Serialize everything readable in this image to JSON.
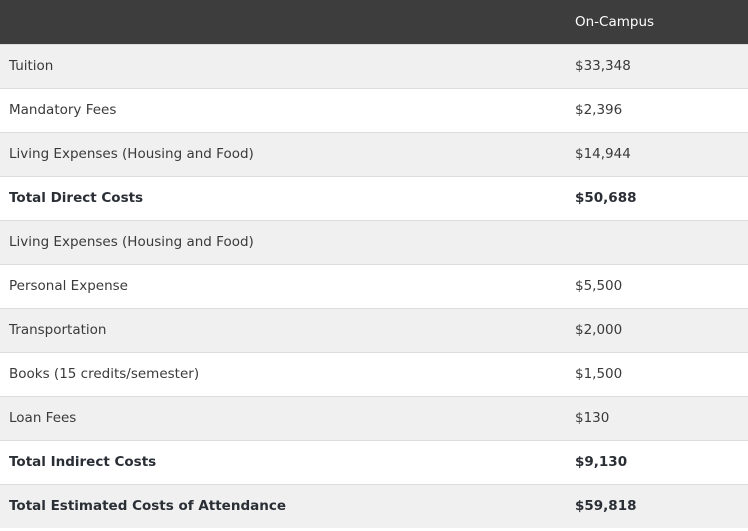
{
  "table": {
    "header": {
      "column": "On-Campus"
    },
    "rows": [
      [
        "Tuition",
        "$33,348"
      ],
      [
        "Mandatory Fees",
        "$2,396"
      ],
      [
        "Living Expenses (Housing and Food)",
        "$14,944"
      ],
      [
        "Total Direct Costs",
        "$50,688"
      ],
      [
        "Living Expenses (Housing and Food)"
      ],
      [
        "Personal Expense",
        "$5,500"
      ],
      [
        "Transportation",
        "$2,000"
      ],
      [
        "Books (15 credits/semester)",
        "$1,500"
      ],
      [
        "Loan Fees",
        "$130"
      ],
      [
        "Total Indirect Costs",
        "$9,130"
      ],
      [
        "Total Estimated Costs of Attendance",
        "$59,818"
      ]
    ]
  }
}
